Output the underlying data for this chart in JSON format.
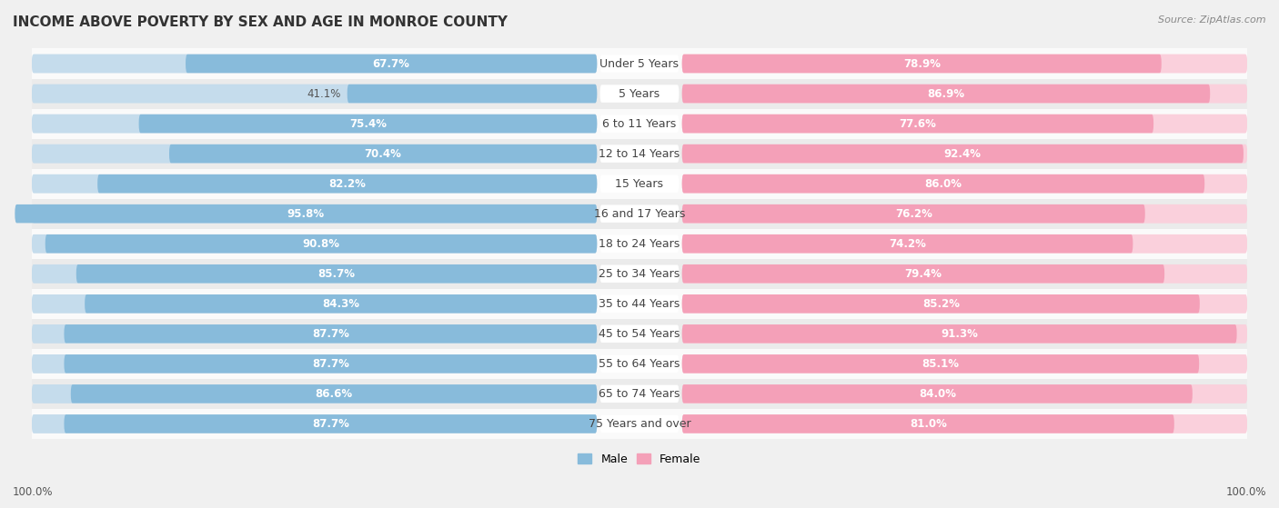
{
  "title": "INCOME ABOVE POVERTY BY SEX AND AGE IN MONROE COUNTY",
  "source": "Source: ZipAtlas.com",
  "categories": [
    "Under 5 Years",
    "5 Years",
    "6 to 11 Years",
    "12 to 14 Years",
    "15 Years",
    "16 and 17 Years",
    "18 to 24 Years",
    "25 to 34 Years",
    "35 to 44 Years",
    "45 to 54 Years",
    "55 to 64 Years",
    "65 to 74 Years",
    "75 Years and over"
  ],
  "male_values": [
    67.7,
    41.1,
    75.4,
    70.4,
    82.2,
    95.8,
    90.8,
    85.7,
    84.3,
    87.7,
    87.7,
    86.6,
    87.7
  ],
  "female_values": [
    78.9,
    86.9,
    77.6,
    92.4,
    86.0,
    76.2,
    74.2,
    79.4,
    85.2,
    91.3,
    85.1,
    84.0,
    81.0
  ],
  "male_color": "#88bbdb",
  "female_color": "#f4a0b8",
  "male_bar_light": "#c5dcec",
  "female_bar_light": "#fad0dc",
  "bg_color": "#f0f0f0",
  "row_bg_even": "#fafafa",
  "row_bg_odd": "#ebebeb",
  "title_fontsize": 11,
  "label_fontsize": 9,
  "bar_label_fontsize": 8.5,
  "legend_fontsize": 9,
  "max_value": 100.0
}
